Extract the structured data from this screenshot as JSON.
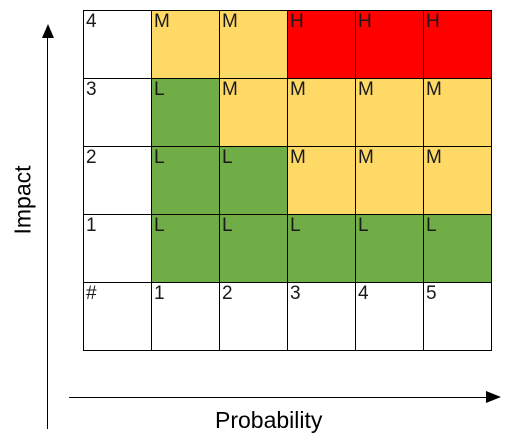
{
  "colors": {
    "low": "#70ad47",
    "medium": "#ffd966",
    "high": "#ff0000",
    "header": "#ffffff"
  },
  "x_axis_label": "Probability",
  "y_axis_label": "Impact",
  "matrix": {
    "rows": [
      {
        "impact": "4",
        "cells": [
          "M",
          "M",
          "H",
          "H",
          "H"
        ]
      },
      {
        "impact": "3",
        "cells": [
          "L",
          "M",
          "M",
          "M",
          "M"
        ]
      },
      {
        "impact": "2",
        "cells": [
          "L",
          "L",
          "M",
          "M",
          "M"
        ]
      },
      {
        "impact": "1",
        "cells": [
          "L",
          "L",
          "L",
          "L",
          "L"
        ]
      }
    ],
    "corner_label": "#",
    "probability_labels": [
      "1",
      "2",
      "3",
      "4",
      "5"
    ]
  }
}
